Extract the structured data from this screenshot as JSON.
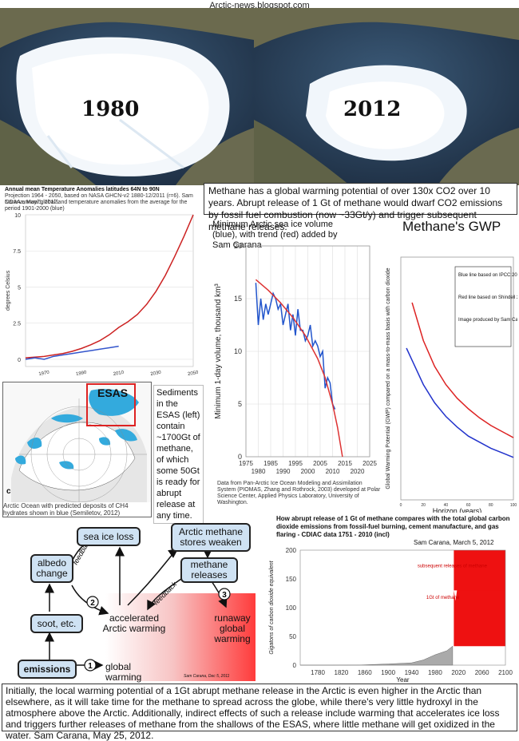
{
  "site": "Arctic-news.blogspot.com",
  "maps": {
    "left_year": "1980",
    "right_year": "2012"
  },
  "methane_text": "Methane has a global warming potential of over 130x CO2 over 10 years. Abrupt release of 1 Gt of methane would dwarf CO2 emissions by fossil fuel combustion (now ~33Gt/y) and trigger subsequent methane releases.",
  "esas": {
    "label": "ESAS",
    "corner": "c",
    "caption": "Arctic Ocean with predicted deposits of CH4 hydrates shown in blue (Semiletov, 2012)",
    "side_text": "Sediments in the ESAS (left) contain ~1700Gt of methane, of which some 50Gt is ready for abrupt release at any time."
  },
  "flow": {
    "nodes": {
      "sea_ice_loss": "sea ice loss",
      "arctic_methane": "Arctic methane stores weaken",
      "albedo": "albedo change",
      "methane_releases": "methane releases",
      "soot": "soot, etc.",
      "accelerated": "accelerated Arctic warming",
      "runaway": "runaway global warming",
      "emissions": "emissions",
      "global": "global warming"
    },
    "feedback1": "feedback",
    "feedback2": "feedback",
    "num1": "1",
    "num2": "2",
    "num3": "3",
    "credit": "Sam Carana, Dec 5, 2011"
  },
  "bottom_text": "Initially, the local warming potential of a 1Gt abrupt methane release in the Arctic is even higher in the Arctic than elsewhere, as it will take time for the methane to spread across the globe, while there's very little hydroxyl in the atmosphere above the Arctic. Additionally, indirect effects of such a release include warming that accelerates ice loss and triggers further releases of methane from the shallows of the ESAS, where little methane will get oxidized in the water.   Sam Carana, May 25, 2012.",
  "chart_data": [
    {
      "type": "line",
      "title": "Annual mean Temperature Anomalies latitudes 64N to 90N",
      "subtitle": "Projection 1964 - 2050, based on NASA GHCN-v2 1880-12/2011 (r=6). Sam Carana, May 5, 2012.",
      "subtitle2": "NOAA annual global land temperature anomalies from the average for the period 1901-2000 (blue)",
      "ylabel": "degrees Celsius",
      "ylim": [
        -0.5,
        10
      ],
      "xlim": [
        1960,
        2050
      ],
      "xticks": [
        "1970",
        "1980",
        "1990",
        "2000",
        "2010",
        "2020",
        "2030",
        "2040",
        "2050"
      ],
      "yticks": [
        "0",
        "2.5",
        "5",
        "7.5",
        "10"
      ],
      "series": [
        {
          "color": "#cc2222",
          "x": [
            1960,
            1965,
            1970,
            1975,
            1980,
            1985,
            1990,
            1995,
            2000,
            2005,
            2010,
            2015,
            2020,
            2025,
            2030,
            2035,
            2040,
            2045,
            2050
          ],
          "values": [
            0.1,
            0.15,
            0.2,
            0.3,
            0.4,
            0.55,
            0.75,
            1.0,
            1.3,
            1.7,
            2.2,
            2.6,
            3.1,
            3.8,
            4.7,
            5.8,
            7.1,
            8.5,
            10
          ]
        },
        {
          "color": "#3355cc",
          "x": [
            1960,
            1965,
            1970,
            1975,
            1980,
            1985,
            1990,
            1995,
            2000,
            2005,
            2010
          ],
          "values": [
            0.0,
            0.1,
            0.0,
            0.2,
            0.3,
            0.4,
            0.5,
            0.6,
            0.7,
            0.8,
            0.9
          ]
        }
      ]
    },
    {
      "type": "line",
      "title": "Minimum Arctic sea ice volume (blue), with trend (red) added by Sam Carana",
      "ylabel": "Minimum 1-day volume, thousand km³",
      "xlim": [
        1975,
        2025
      ],
      "ylim": [
        0,
        20
      ],
      "xticks": [
        "1975",
        "1980",
        "1985",
        "1990",
        "1995",
        "2000",
        "2005",
        "2010",
        "2015",
        "2020",
        "2025"
      ],
      "yticks": [
        "0",
        "5",
        "10",
        "15",
        "20"
      ],
      "source": "Data from Pan-Arctic Ice Ocean Modeling and Assimilation System (PIOMAS, Zhang and Rothrock, 2003) developed at Polar Science Center, Applied Physics Laboratory, University of Washington.",
      "series": [
        {
          "color": "#2255cc",
          "x": [
            1979,
            1980,
            1981,
            1982,
            1983,
            1984,
            1985,
            1986,
            1987,
            1988,
            1989,
            1990,
            1991,
            1992,
            1993,
            1994,
            1995,
            1996,
            1997,
            1998,
            1999,
            2000,
            2001,
            2002,
            2003,
            2004,
            2005,
            2006,
            2007,
            2008,
            2009,
            2010,
            2011
          ],
          "values": [
            16.5,
            12.5,
            15.0,
            13.0,
            14.5,
            13.5,
            14.5,
            15.5,
            15.0,
            14.0,
            14.5,
            12.5,
            13.5,
            14.5,
            12.0,
            13.5,
            11.5,
            14.0,
            12.0,
            12.0,
            11.0,
            11.5,
            12.5,
            10.5,
            11.0,
            10.5,
            9.5,
            10.0,
            6.5,
            7.5,
            7.0,
            5.0,
            4.5
          ]
        },
        {
          "color": "#dd3333",
          "x": [
            1979,
            1984,
            1989,
            1994,
            1999,
            2004,
            2007,
            2010,
            2012,
            2014
          ],
          "values": [
            16.8,
            15.8,
            14.6,
            13.2,
            11.5,
            9.3,
            7.5,
            5.0,
            2.8,
            0.0
          ]
        }
      ]
    },
    {
      "type": "line",
      "title": "Methane's GWP",
      "ylabel": "Global Warming Potential (GWP) compared on a mass-to-mass basis with carbon dioxide",
      "xlabel": "Horizon (years)",
      "xticks": [
        "0",
        "20",
        "40",
        "60",
        "80",
        "100"
      ],
      "xlim": [
        0,
        100
      ],
      "legend": [
        "Blue line based on IPCC 2007",
        "Red line based on Shindell 2009",
        "Image produced by Sam Carana May 23, 2012"
      ],
      "series": [
        {
          "color": "#dd2222",
          "x": [
            10,
            20,
            30,
            40,
            50,
            60,
            70,
            80,
            90,
            100
          ],
          "values": [
            130,
            105,
            88,
            76,
            67,
            60,
            54,
            49,
            45,
            41
          ]
        },
        {
          "color": "#2233cc",
          "x": [
            5,
            10,
            20,
            30,
            40,
            50,
            60,
            70,
            80,
            90,
            100
          ],
          "values": [
            100,
            92,
            76,
            64,
            55,
            48,
            42,
            38,
            34,
            31,
            28
          ]
        }
      ]
    },
    {
      "type": "area",
      "title": "How abrupt release of 1 Gt of methane compares with the total global carbon dioxide emissions from fossil-fuel burning, cement manufacture, and gas flaring - CDIAC data 1751 - 2010 (incl)",
      "credit": "Sam Carana, March 5, 2012",
      "ylabel": "Gigatons of carbon dioxide equivalent",
      "xlabel": "Year",
      "xlim": [
        1750,
        2100
      ],
      "ylim": [
        0,
        200
      ],
      "xticks": [
        "1780",
        "1820",
        "1860",
        "1900",
        "1940",
        "1980",
        "2020",
        "2060",
        "2100"
      ],
      "yticks": [
        "0",
        "50",
        "100",
        "150",
        "200"
      ],
      "annotations": [
        "subsequent releases of methane",
        "1Gt of methane"
      ],
      "series": [
        {
          "color": "#aaaaaa",
          "x": [
            1750,
            1800,
            1850,
            1900,
            1940,
            1960,
            1980,
            2000,
            2010
          ],
          "values": [
            0,
            0,
            0.2,
            2,
            4,
            9,
            18,
            25,
            33
          ]
        },
        {
          "color": "#ee1111",
          "x": [
            2012,
            2020,
            2030,
            2040,
            2050,
            2060,
            2070,
            2080,
            2090,
            2100
          ],
          "values": [
            130,
            150,
            160,
            170,
            175,
            180,
            185,
            190,
            195,
            200
          ]
        }
      ]
    }
  ]
}
